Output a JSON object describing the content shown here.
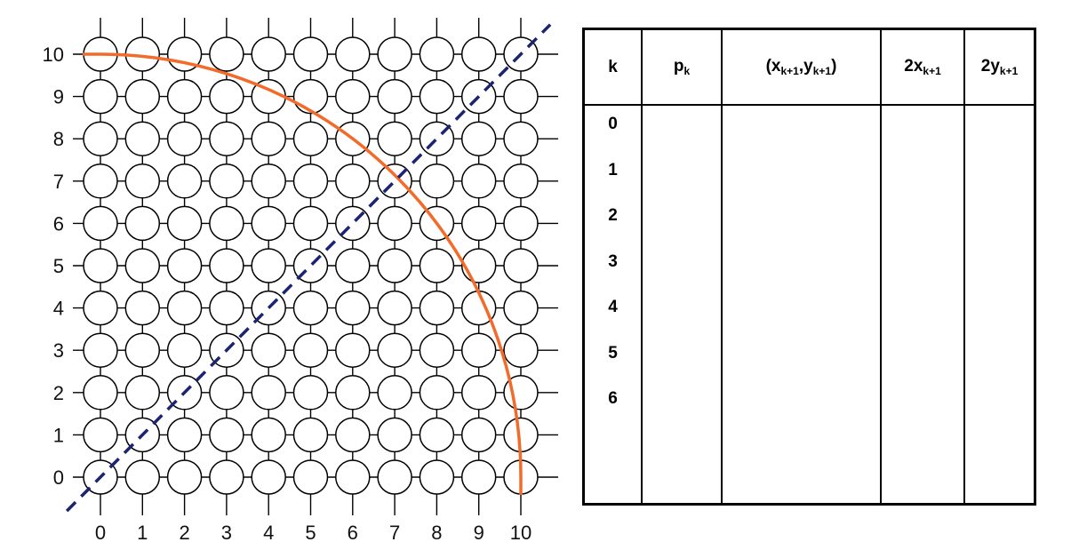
{
  "grid": {
    "x_ticks": [
      "0",
      "1",
      "2",
      "3",
      "4",
      "5",
      "6",
      "7",
      "8",
      "9",
      "10"
    ],
    "y_ticks": [
      "0",
      "1",
      "2",
      "3",
      "4",
      "5",
      "6",
      "7",
      "8",
      "9",
      "10"
    ],
    "circle_arc": {
      "center": [
        0,
        0
      ],
      "radius": 10,
      "color": "#f26b2a"
    },
    "diagonal_line": {
      "equation": "y = x",
      "style": "dashed",
      "color": "#1a2470"
    },
    "pixel_circle_color": "#000000"
  },
  "table": {
    "headers": {
      "k": "k",
      "pk": {
        "base": "p",
        "sub": "k"
      },
      "point": {
        "open": "(",
        "x": "x",
        "x_sub": "k+1",
        "comma": ",",
        "y": "y",
        "y_sub": "k+1",
        "close": ")"
      },
      "two_x": {
        "base": "2x",
        "sub": "k+1"
      },
      "two_y": {
        "base": "2y",
        "sub": "k+1"
      }
    },
    "k_values": [
      "0",
      "1",
      "2",
      "3",
      "4",
      "5",
      "6"
    ]
  }
}
